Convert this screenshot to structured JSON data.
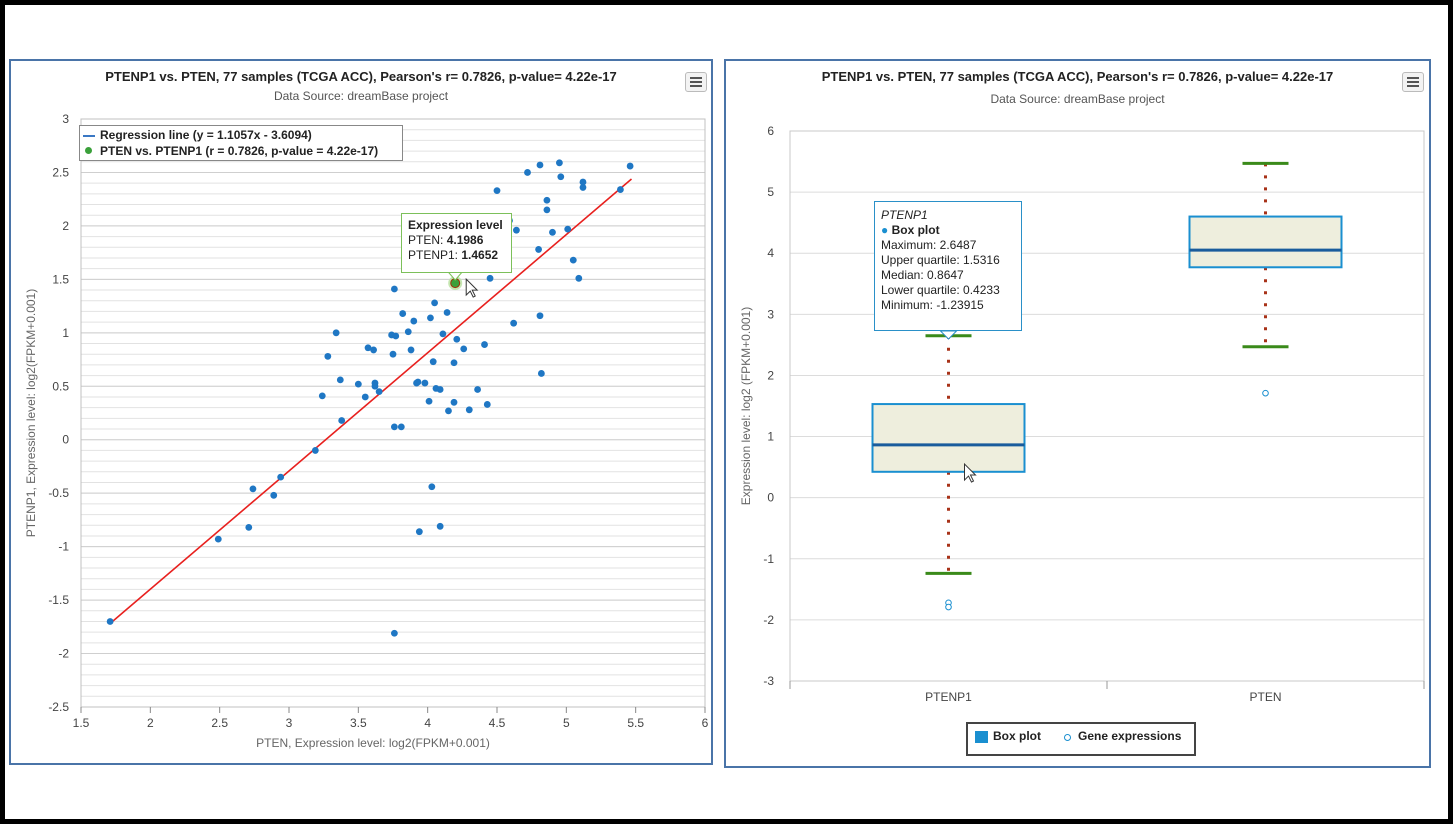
{
  "scatter": {
    "menu_icon": "hamburger-menu-icon",
    "legend": {
      "regression_label": "Regression line (y = 1.1057x - 3.6094)",
      "points_label": "PTEN vs. PTENP1 (r = 0.7826, p-value = 4.22e-17)",
      "line_color": "#3a78c4",
      "point_color": "#3aa03a"
    },
    "tooltip": {
      "title": "Expression level",
      "x_name": "PTEN:",
      "x_value": "4.1986",
      "y_name": "PTENP1:",
      "y_value": "1.4652",
      "border_color": "#7cc05a"
    }
  },
  "boxplot": {
    "menu_icon": "hamburger-menu-icon",
    "legend": {
      "box_label": "Box plot",
      "points_label": "Gene expressions",
      "box_color": "#1a8fd0"
    },
    "tooltip": {
      "series": "PTENP1",
      "name": "Box plot",
      "maximum": "Maximum: 2.6487",
      "upper_quartile": "Upper quartile: 1.5316",
      "median": "Median: 0.8647",
      "lower_quartile": "Lower quartile: 0.4233",
      "minimum": "Minimum: -1.23915"
    }
  },
  "chart_data": [
    {
      "type": "scatter",
      "title": "PTENP1 vs. PTEN, 77 samples (TCGA ACC), Pearson's r= 0.7826, p-value= 4.22e-17",
      "subtitle": "Data Source: dreamBase project",
      "xlabel": "PTEN, Expression level: log2(FPKM+0.001)",
      "ylabel": "PTENP1, Expression level: log2(FPKM+0.001)",
      "xlim": [
        1.5,
        6
      ],
      "ylim": [
        -2.5,
        3
      ],
      "xticks": [
        1.5,
        2,
        2.5,
        3,
        3.5,
        4,
        4.5,
        5,
        5.5,
        6
      ],
      "yticks": [
        -2.5,
        -2,
        -1.5,
        -1,
        -0.5,
        0,
        0.5,
        1,
        1.5,
        2,
        2.5,
        3
      ],
      "grid": true,
      "legend_position": "top-left",
      "point_color": "#1f77c4",
      "line_color": "#e8201e",
      "regression": {
        "slope": 1.1057,
        "intercept": -3.6094,
        "x_range": [
          1.71,
          5.47
        ]
      },
      "highlight": {
        "x": 4.1986,
        "y": 1.4652
      },
      "points": [
        [
          1.71,
          -1.7
        ],
        [
          2.49,
          -0.93
        ],
        [
          2.71,
          -0.82
        ],
        [
          2.74,
          -0.46
        ],
        [
          2.89,
          -0.52
        ],
        [
          2.94,
          -0.35
        ],
        [
          3.19,
          -0.1
        ],
        [
          3.24,
          0.41
        ],
        [
          3.28,
          0.78
        ],
        [
          3.34,
          1.0
        ],
        [
          3.37,
          0.56
        ],
        [
          3.38,
          0.18
        ],
        [
          3.5,
          0.52
        ],
        [
          3.55,
          0.4
        ],
        [
          3.57,
          0.86
        ],
        [
          3.61,
          0.84
        ],
        [
          3.62,
          0.53
        ],
        [
          3.62,
          0.5
        ],
        [
          3.65,
          0.45
        ],
        [
          3.74,
          0.98
        ],
        [
          3.75,
          0.8
        ],
        [
          3.76,
          0.12
        ],
        [
          3.76,
          1.41
        ],
        [
          3.77,
          0.97
        ],
        [
          3.76,
          -1.81
        ],
        [
          3.81,
          0.12
        ],
        [
          3.82,
          1.18
        ],
        [
          3.86,
          1.01
        ],
        [
          3.88,
          0.84
        ],
        [
          3.9,
          1.11
        ],
        [
          3.92,
          0.53
        ],
        [
          3.93,
          0.54
        ],
        [
          3.94,
          -0.86
        ],
        [
          3.98,
          0.53
        ],
        [
          4.01,
          0.36
        ],
        [
          4.02,
          1.14
        ],
        [
          4.03,
          -0.44
        ],
        [
          4.04,
          0.73
        ],
        [
          4.05,
          1.28
        ],
        [
          4.06,
          0.48
        ],
        [
          4.09,
          0.47
        ],
        [
          4.09,
          -0.81
        ],
        [
          4.11,
          0.99
        ],
        [
          4.14,
          1.19
        ],
        [
          4.15,
          0.27
        ],
        [
          4.19,
          0.72
        ],
        [
          4.19,
          0.35
        ],
        [
          4.21,
          0.94
        ],
        [
          4.26,
          0.85
        ],
        [
          4.3,
          0.28
        ],
        [
          4.36,
          0.47
        ],
        [
          4.41,
          0.89
        ],
        [
          4.43,
          0.33
        ],
        [
          4.45,
          1.51
        ],
        [
          4.5,
          2.33
        ],
        [
          4.59,
          2.05
        ],
        [
          4.62,
          1.09
        ],
        [
          4.64,
          1.96
        ],
        [
          4.72,
          2.5
        ],
        [
          4.8,
          1.78
        ],
        [
          4.81,
          2.57
        ],
        [
          4.81,
          1.16
        ],
        [
          4.82,
          0.62
        ],
        [
          4.86,
          2.24
        ],
        [
          4.86,
          2.15
        ],
        [
          4.9,
          1.94
        ],
        [
          4.95,
          2.59
        ],
        [
          4.96,
          2.46
        ],
        [
          5.01,
          1.97
        ],
        [
          5.05,
          1.68
        ],
        [
          5.09,
          1.51
        ],
        [
          5.12,
          2.41
        ],
        [
          5.12,
          2.36
        ],
        [
          5.39,
          2.34
        ],
        [
          5.46,
          2.56
        ]
      ]
    },
    {
      "type": "box",
      "title": "PTENP1 vs. PTEN, 77 samples (TCGA ACC), Pearson's r= 0.7826, p-value= 4.22e-17",
      "subtitle": "Data Source: dreamBase project",
      "xlabel": "",
      "ylabel": "Expression level: log2 (FPKM+0.001)",
      "categories": [
        "PTENP1",
        "PTEN"
      ],
      "ylim": [
        -3,
        6
      ],
      "yticks": [
        -3,
        -2,
        -1,
        0,
        1,
        2,
        3,
        4,
        5,
        6
      ],
      "grid": true,
      "legend_position": "bottom-center",
      "box_fill": "#eeeedd",
      "box_stroke": "#1a8fd0",
      "median_color": "#1a5c9c",
      "whisker_color": "#a83218",
      "cap_color": "#3a8a1a",
      "boxes": [
        {
          "category": "PTENP1",
          "min": -1.23915,
          "q1": 0.4233,
          "median": 0.8647,
          "q3": 1.5316,
          "max": 2.6487
        },
        {
          "category": "PTEN",
          "min": 2.47,
          "q1": 3.77,
          "median": 4.05,
          "q3": 4.6,
          "max": 5.47
        }
      ],
      "outliers": [
        {
          "category": "PTENP1",
          "value": -1.72
        },
        {
          "category": "PTENP1",
          "value": -1.79
        },
        {
          "category": "PTEN",
          "value": 1.71
        }
      ]
    }
  ]
}
